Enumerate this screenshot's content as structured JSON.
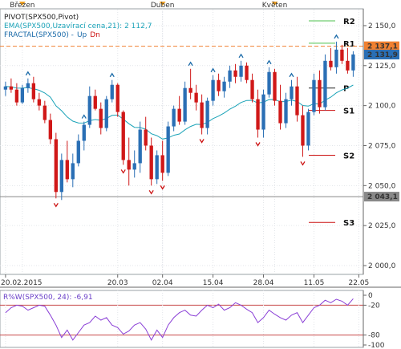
{
  "chart_data": [
    {
      "type": "candlestick",
      "symbol": "SPX500",
      "legend": [
        {
          "text": "PIVOT(SPX500,Pivot)",
          "color": "#222222"
        },
        {
          "text": "EMA(SPX500,Uzavírací cena,21): 2 112,7",
          "color": "#1ba3b8"
        },
        {
          "text": "FRACTAL(SPX500) -",
          "color": "#1a6aa8",
          "up": "Up",
          "dn": "Dn",
          "up_color": "#1a6aa8",
          "dn_color": "#cc1111"
        }
      ],
      "months": [
        {
          "label": "Březen",
          "index": 3
        },
        {
          "label": "Duben",
          "index": 28
        },
        {
          "label": "Květen",
          "index": 48
        }
      ],
      "x_ticks": [
        {
          "label": "20.02.2015",
          "index": 0
        },
        {
          "label": "20.03",
          "index": 20
        },
        {
          "label": "02.04",
          "index": 28
        },
        {
          "label": "15.04",
          "index": 37
        },
        {
          "label": "28.04",
          "index": 46
        },
        {
          "label": "11.05",
          "index": 55
        },
        {
          "label": "22.05",
          "index": 63
        }
      ],
      "ylim": [
        1995,
        2160
      ],
      "y_ticks": [
        {
          "label": "2 000,0",
          "value": 2000
        },
        {
          "label": "2 025,0",
          "value": 2025
        },
        {
          "label": "2 050,0",
          "value": 2050
        },
        {
          "label": "2 075,0",
          "value": 2075
        },
        {
          "label": "2 100,0",
          "value": 2100
        },
        {
          "label": "2 125,0",
          "value": 2125
        },
        {
          "label": "2 150,0",
          "value": 2150
        }
      ],
      "price_tags": [
        {
          "label": "2 137,1",
          "value": 2137.1,
          "color": "#f08030"
        },
        {
          "label": "2 131,9",
          "value": 2131.9,
          "color": "#2a6fb5"
        },
        {
          "label": "2 043,1",
          "value": 2043.1,
          "color": "#888888"
        }
      ],
      "resistance_line": 2137.1,
      "support_line": 2043.1,
      "pivots": [
        {
          "label": "R2",
          "value": 2153,
          "color": "#4cc24c"
        },
        {
          "label": "R1",
          "value": 2139,
          "color": "#4cc24c"
        },
        {
          "label": "P",
          "value": 2111,
          "color": "#222222"
        },
        {
          "label": "S1",
          "value": 2097,
          "color": "#cc1111"
        },
        {
          "label": "S2",
          "value": 2069,
          "color": "#cc1111"
        },
        {
          "label": "S3",
          "value": 2027,
          "color": "#cc1111"
        }
      ],
      "candles": [
        [
          2110,
          2115,
          2106,
          2112
        ],
        [
          2112,
          2117,
          2108,
          2110
        ],
        [
          2110,
          2114,
          2100,
          2102
        ],
        [
          2102,
          2113,
          2101,
          2111
        ],
        [
          2111,
          2117,
          2108,
          2114
        ],
        [
          2114,
          2118,
          2102,
          2104
        ],
        [
          2104,
          2108,
          2097,
          2100
        ],
        [
          2100,
          2103,
          2089,
          2091
        ],
        [
          2091,
          2095,
          2076,
          2079
        ],
        [
          2079,
          2083,
          2042,
          2046
        ],
        [
          2046,
          2070,
          2041,
          2066
        ],
        [
          2066,
          2078,
          2052,
          2054
        ],
        [
          2054,
          2070,
          2049,
          2064
        ],
        [
          2064,
          2082,
          2062,
          2078
        ],
        [
          2078,
          2090,
          2072,
          2088
        ],
        [
          2088,
          2112,
          2086,
          2106
        ],
        [
          2106,
          2110,
          2097,
          2098
        ],
        [
          2098,
          2102,
          2082,
          2086
        ],
        [
          2086,
          2106,
          2084,
          2104
        ],
        [
          2104,
          2116,
          2102,
          2113
        ],
        [
          2113,
          2114,
          2093,
          2096
        ],
        [
          2096,
          2097,
          2063,
          2066
        ],
        [
          2066,
          2080,
          2050,
          2060
        ],
        [
          2060,
          2072,
          2055,
          2064
        ],
        [
          2064,
          2090,
          2058,
          2085
        ],
        [
          2085,
          2093,
          2072,
          2075
        ],
        [
          2075,
          2080,
          2050,
          2054
        ],
        [
          2054,
          2072,
          2051,
          2069
        ],
        [
          2069,
          2078,
          2053,
          2058
        ],
        [
          2058,
          2090,
          2056,
          2087
        ],
        [
          2087,
          2100,
          2084,
          2098
        ],
        [
          2098,
          2106,
          2088,
          2090
        ],
        [
          2090,
          2115,
          2088,
          2111
        ],
        [
          2111,
          2123,
          2104,
          2108
        ],
        [
          2108,
          2113,
          2097,
          2102
        ],
        [
          2102,
          2107,
          2082,
          2086
        ],
        [
          2086,
          2105,
          2082,
          2103
        ],
        [
          2103,
          2119,
          2100,
          2116
        ],
        [
          2116,
          2120,
          2106,
          2109
        ],
        [
          2109,
          2118,
          2105,
          2115
        ],
        [
          2115,
          2125,
          2111,
          2122
        ],
        [
          2122,
          2126,
          2114,
          2118
        ],
        [
          2118,
          2128,
          2115,
          2125
        ],
        [
          2125,
          2127,
          2114,
          2116
        ],
        [
          2116,
          2120,
          2102,
          2104
        ],
        [
          2104,
          2110,
          2080,
          2085
        ],
        [
          2085,
          2110,
          2080,
          2107
        ],
        [
          2107,
          2124,
          2105,
          2121
        ],
        [
          2121,
          2123,
          2100,
          2103
        ],
        [
          2103,
          2113,
          2085,
          2089
        ],
        [
          2089,
          2108,
          2086,
          2104
        ],
        [
          2104,
          2116,
          2100,
          2112
        ],
        [
          2112,
          2118,
          2090,
          2094
        ],
        [
          2094,
          2100,
          2068,
          2075
        ],
        [
          2075,
          2098,
          2072,
          2096
        ],
        [
          2096,
          2120,
          2094,
          2116
        ],
        [
          2116,
          2122,
          2095,
          2099
        ],
        [
          2099,
          2132,
          2097,
          2128
        ],
        [
          2128,
          2136,
          2122,
          2124
        ],
        [
          2124,
          2140,
          2120,
          2135
        ],
        [
          2135,
          2138,
          2126,
          2128
        ],
        [
          2128,
          2136,
          2120,
          2122
        ],
        [
          2122,
          2134,
          2118,
          2132
        ]
      ],
      "fractals_up": [
        4,
        14,
        19,
        33,
        37,
        42,
        47,
        51,
        59
      ],
      "fractals_down": [
        9,
        21,
        26,
        28,
        35,
        45,
        53
      ]
    },
    {
      "type": "line",
      "title": "R%W(SPX500, 24): -6,91",
      "ylim": [
        -100,
        0
      ],
      "y_ticks": [
        {
          "label": "0",
          "value": 0
        },
        {
          "label": "-20",
          "value": -20
        },
        {
          "label": "-80",
          "value": -80
        },
        {
          "label": "-100",
          "value": -100
        }
      ],
      "levels": [
        -20,
        -80
      ],
      "values": [
        -35,
        -25,
        -20,
        -22,
        -30,
        -25,
        -20,
        -22,
        -40,
        -60,
        -85,
        -70,
        -90,
        -75,
        -60,
        -55,
        -42,
        -50,
        -45,
        -60,
        -65,
        -78,
        -72,
        -60,
        -55,
        -68,
        -90,
        -70,
        -85,
        -60,
        -45,
        -35,
        -30,
        -40,
        -42,
        -30,
        -20,
        -25,
        -18,
        -30,
        -25,
        -15,
        -20,
        -28,
        -35,
        -55,
        -45,
        -30,
        -38,
        -45,
        -50,
        -40,
        -35,
        -55,
        -40,
        -25,
        -20,
        -10,
        -15,
        -8,
        -12,
        -20,
        -7
      ]
    }
  ]
}
